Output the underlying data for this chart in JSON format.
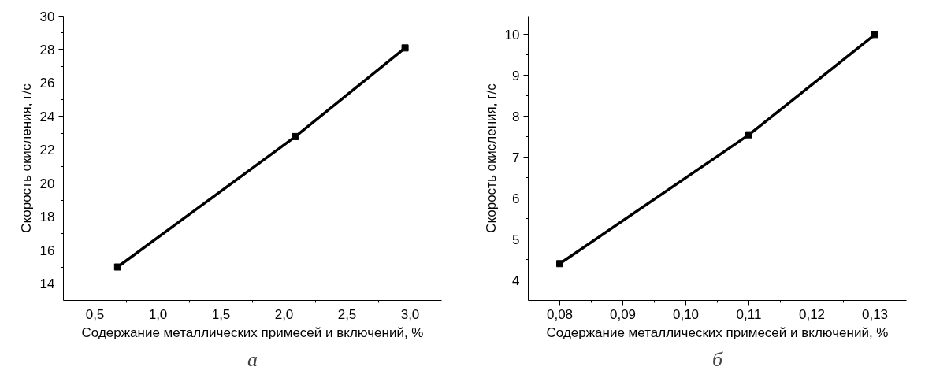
{
  "chart_data": [
    {
      "type": "line",
      "xlabel": "Содержание металлических примесей и включений, %",
      "ylabel": "Скорость окисления, г/с",
      "annotations": [
        "а"
      ],
      "x": [
        0.68,
        2.09,
        2.96
      ],
      "series": [
        {
          "color": "#000000",
          "values": [
            15.0,
            22.8,
            28.1
          ]
        }
      ],
      "xlim": [
        0.25,
        3.25
      ],
      "xticks": [
        {
          "value": 0.5,
          "label": "0,5"
        },
        {
          "value": 1.0,
          "label": "1,0"
        },
        {
          "value": 1.5,
          "label": "1,5"
        },
        {
          "value": 2.0,
          "label": "2,0"
        },
        {
          "value": 2.5,
          "label": "2,5"
        },
        {
          "value": 3.0,
          "label": "3,0"
        }
      ],
      "ylim": [
        13,
        30
      ],
      "yticks": [
        14,
        16,
        18,
        20,
        22,
        24,
        26,
        28,
        30
      ],
      "grid": false,
      "marker": "square",
      "line_style": "solid"
    },
    {
      "type": "line",
      "xlabel": "Содержание металлических примесей и включений, %",
      "ylabel": "Скорость окисления, г/с",
      "annotations": [
        "б"
      ],
      "x": [
        0.08,
        0.11,
        0.13
      ],
      "series": [
        {
          "color": "#000000",
          "values": [
            4.4,
            7.55,
            10.0
          ]
        }
      ],
      "xlim": [
        0.075,
        0.135
      ],
      "xticks": [
        {
          "value": 0.08,
          "label": "0,08"
        },
        {
          "value": 0.09,
          "label": "0,09"
        },
        {
          "value": 0.1,
          "label": "0,10"
        },
        {
          "value": 0.11,
          "label": "0,11"
        },
        {
          "value": 0.12,
          "label": "0,12"
        },
        {
          "value": 0.13,
          "label": "0,13"
        }
      ],
      "ylim": [
        3.5,
        10.45
      ],
      "yticks": [
        4,
        5,
        6,
        7,
        8,
        9,
        10
      ],
      "grid": false,
      "marker": "square",
      "line_style": "solid"
    }
  ]
}
